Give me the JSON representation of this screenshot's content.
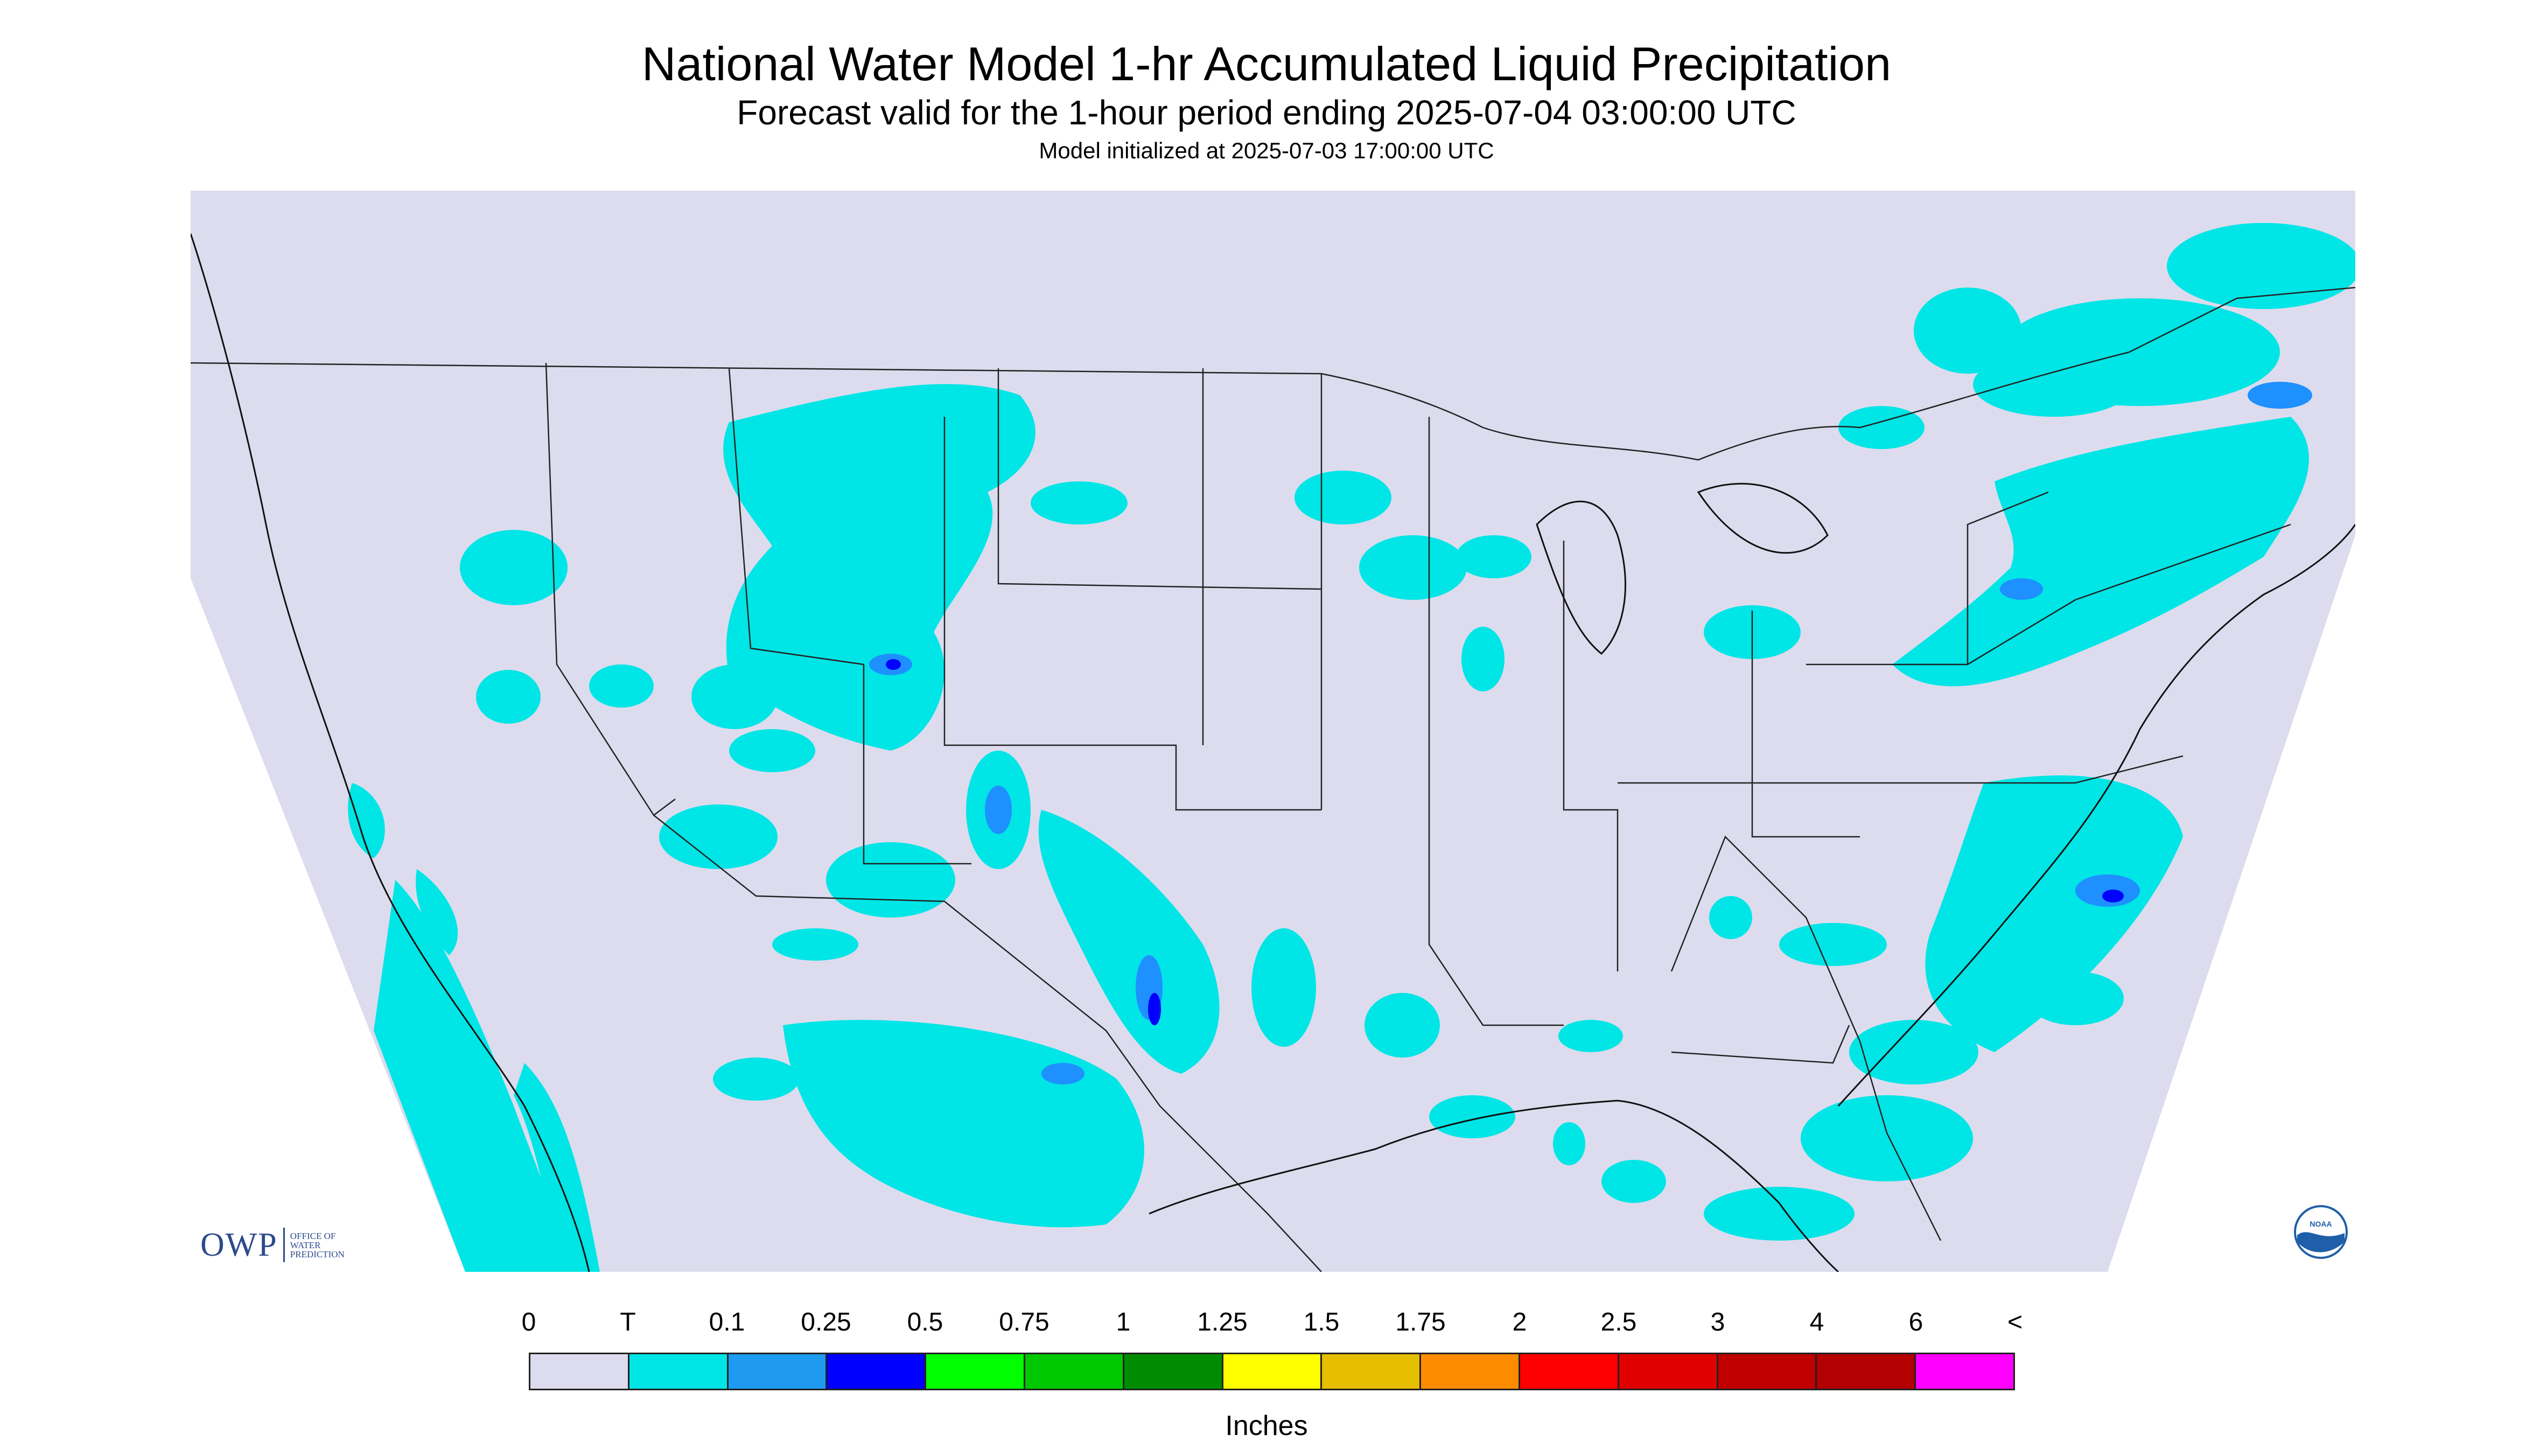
{
  "title": "National Water Model 1-hr Accumulated Liquid Precipitation",
  "subtitle": "Forecast valid for the 1-hour period ending 2025-07-04 03:00:00 UTC",
  "init_line": "Model initialized at 2025-07-03 17:00:00 UTC",
  "map": {
    "region": "Contiguous United States",
    "background_color": "#dcdcee",
    "precip_color_trace": "#00e5e5",
    "precip_color_light": "#1e90ff",
    "precip_color_moderate": "#0000ff"
  },
  "logos": {
    "owp_mark": "OWP",
    "owp_text_lines": [
      "OFFICE OF",
      "WATER",
      "PREDICTION"
    ],
    "noaa_mark": "NOAA"
  },
  "legend": {
    "tick_labels": [
      "0",
      "T",
      "0.1",
      "0.25",
      "0.5",
      "0.75",
      "1",
      "1.25",
      "1.5",
      "1.75",
      "2",
      "2.5",
      "3",
      "4",
      "6",
      "<"
    ],
    "colors": [
      "#dcdcee",
      "#00e5e5",
      "#1e9bf0",
      "#0000ff",
      "#00ff00",
      "#00c800",
      "#008c00",
      "#ffff00",
      "#e6be00",
      "#ff8c00",
      "#ff0000",
      "#e00000",
      "#c00000",
      "#b40000",
      "#ff00ff",
      "#9955c8"
    ],
    "units": "Inches"
  }
}
